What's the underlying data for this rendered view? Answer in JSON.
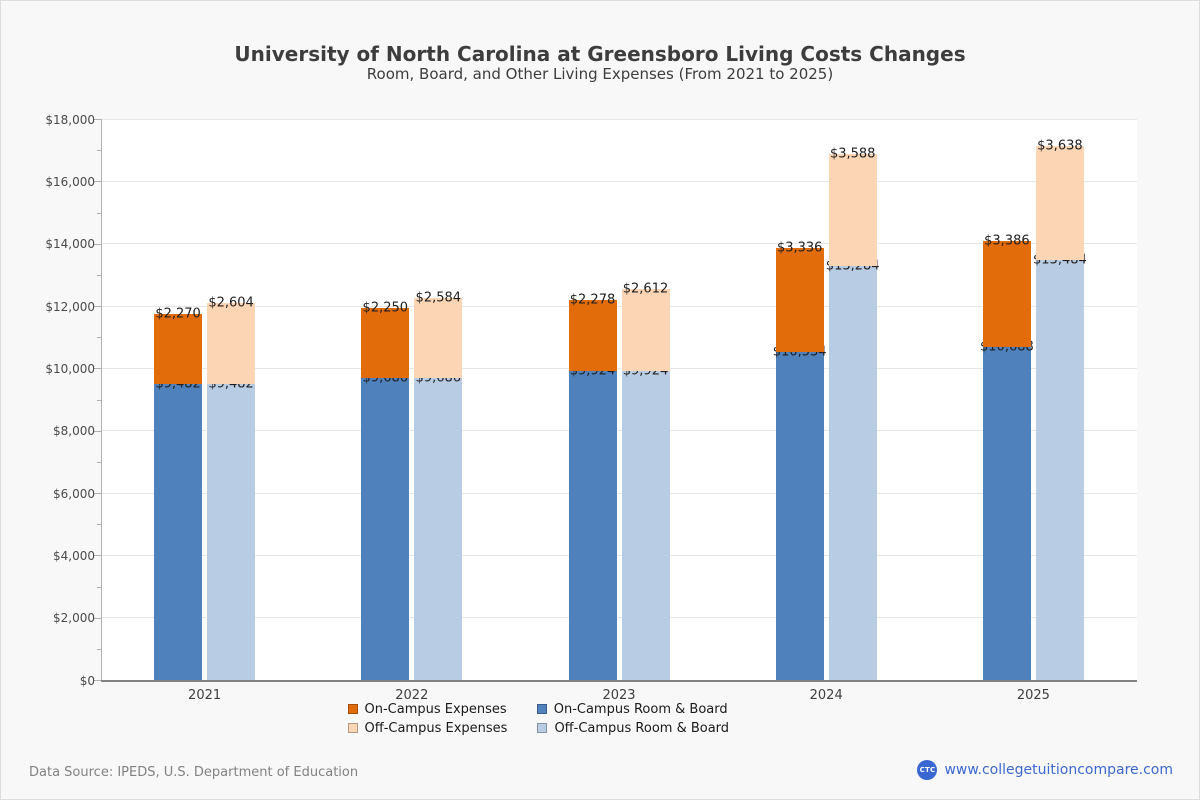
{
  "title": "University of North Carolina at Greensboro Living Costs Changes",
  "subtitle": "Room, Board, and Other Living Expenses (From 2021 to 2025)",
  "footer": {
    "source": "Data Source: IPEDS, U.S. Department of Education",
    "site_label": "www.collegetuitioncompare.com",
    "logo_text": "CTC"
  },
  "colors": {
    "on_campus_expenses": "#E26C0A",
    "on_campus_room_board": "#4F81BD",
    "off_campus_expenses": "#FCD5B4",
    "off_campus_room_board": "#B8CCE4",
    "link_blue": "#3D68CE"
  },
  "chart_data": {
    "type": "bar",
    "stacked": true,
    "title": "University of North Carolina at Greensboro Living Costs Changes",
    "subtitle": "Room, Board, and Other Living Expenses (From 2021 to 2025)",
    "categories": [
      "2021",
      "2022",
      "2023",
      "2024",
      "2025"
    ],
    "series": [
      {
        "name": "On-Campus Room & Board",
        "stack": "on-campus",
        "color_key": "on_campus_room_board",
        "values": [
          9482,
          9686,
          9924,
          10534,
          10688
        ]
      },
      {
        "name": "On-Campus Expenses",
        "stack": "on-campus",
        "color_key": "on_campus_expenses",
        "values": [
          2270,
          2250,
          2278,
          3336,
          3386
        ]
      },
      {
        "name": "Off-Campus Room & Board",
        "stack": "off-campus",
        "color_key": "off_campus_room_board",
        "values": [
          9482,
          9686,
          9924,
          13284,
          13484
        ]
      },
      {
        "name": "Off-Campus Expenses",
        "stack": "off-campus",
        "color_key": "off_campus_expenses",
        "values": [
          2604,
          2584,
          2612,
          3588,
          3638
        ]
      }
    ],
    "ylim": [
      0,
      18000
    ],
    "y_tick_step": 2000,
    "y_minor_tick_step": 1000,
    "y_tick_labels": [
      "$0",
      "$2,000",
      "$4,000",
      "$6,000",
      "$8,000",
      "$10,000",
      "$12,000",
      "$14,000",
      "$16,000",
      "$18,000"
    ],
    "grid": true,
    "legend_position": "bottom",
    "data_label_prefix": "$"
  },
  "legend": {
    "items": [
      {
        "label": "On-Campus Expenses",
        "color_key": "on_campus_expenses"
      },
      {
        "label": "On-Campus Room & Board",
        "color_key": "on_campus_room_board"
      },
      {
        "label": "Off-Campus Expenses",
        "color_key": "off_campus_expenses"
      },
      {
        "label": "Off-Campus Room & Board",
        "color_key": "off_campus_room_board"
      }
    ]
  }
}
